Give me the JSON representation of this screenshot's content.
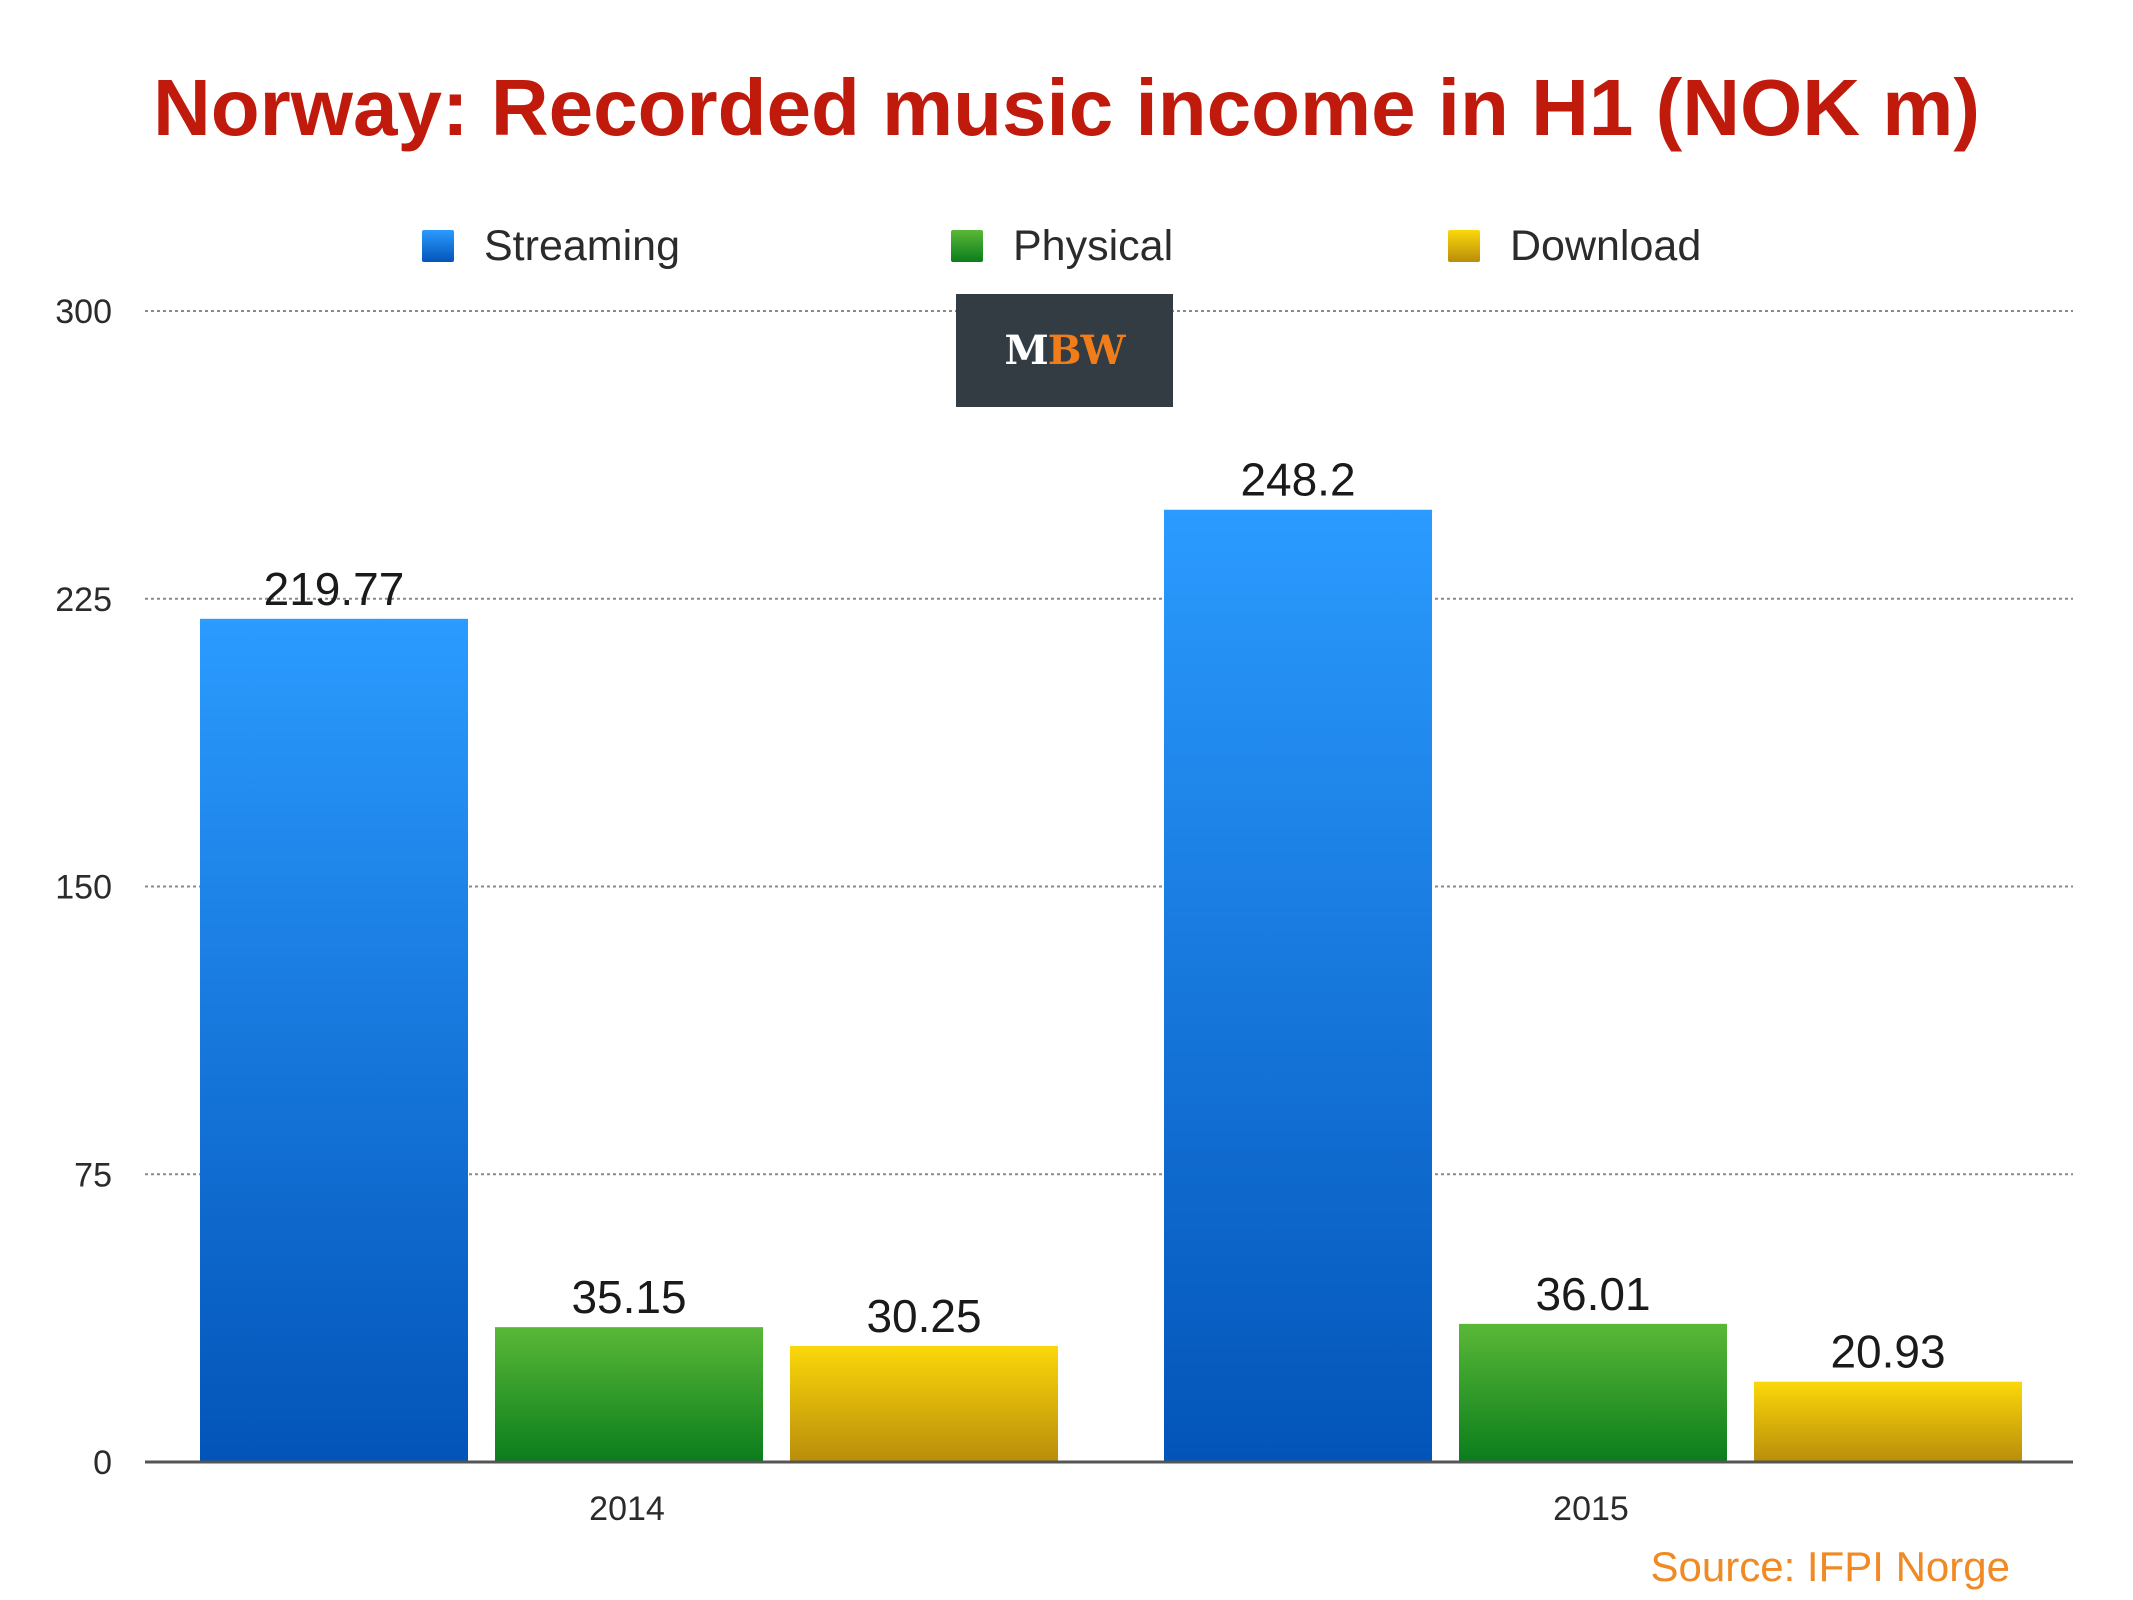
{
  "chart_data": {
    "type": "bar",
    "title": "Norway: Recorded music income in H1 (NOK m)",
    "categories": [
      "2014",
      "2015"
    ],
    "series": [
      {
        "name": "Streaming",
        "values": [
          219.77,
          248.2
        ],
        "value_labels": [
          "219.77",
          "248.2"
        ],
        "color_top": "#2b9bff",
        "color_bottom": "#0354b8"
      },
      {
        "name": "Physical",
        "values": [
          35.15,
          36.01
        ],
        "value_labels": [
          "35.15",
          "36.01"
        ],
        "color_top": "#5ab837",
        "color_bottom": "#0a7d1c"
      },
      {
        "name": "Download",
        "values": [
          30.25,
          20.93
        ],
        "value_labels": [
          "30.25",
          "20.93"
        ],
        "color_top": "#fbd80a",
        "color_bottom": "#b98d0b"
      }
    ],
    "ylim": [
      0,
      300
    ],
    "yticks": [
      0,
      75,
      150,
      225,
      300
    ],
    "grid": true,
    "legend_position": "top",
    "source": "Source: IFPI Norge"
  },
  "logo": {
    "m": "M",
    "bw": "BW"
  }
}
